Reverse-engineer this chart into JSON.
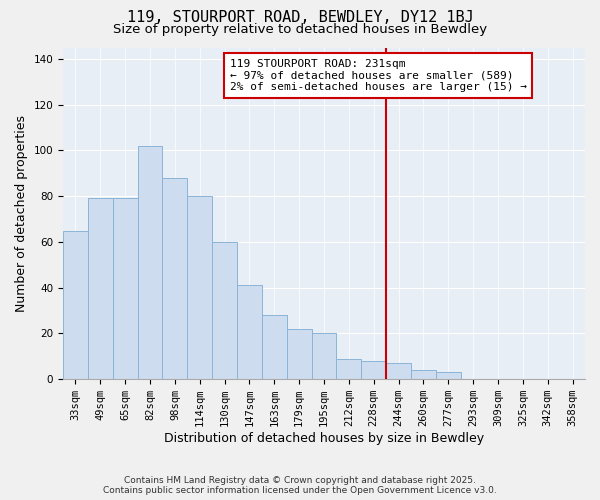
{
  "title": "119, STOURPORT ROAD, BEWDLEY, DY12 1BJ",
  "subtitle": "Size of property relative to detached houses in Bewdley",
  "xlabel": "Distribution of detached houses by size in Bewdley",
  "ylabel": "Number of detached properties",
  "bar_labels": [
    "33sqm",
    "49sqm",
    "65sqm",
    "82sqm",
    "98sqm",
    "114sqm",
    "130sqm",
    "147sqm",
    "163sqm",
    "179sqm",
    "195sqm",
    "212sqm",
    "228sqm",
    "244sqm",
    "260sqm",
    "277sqm",
    "293sqm",
    "309sqm",
    "325sqm",
    "342sqm",
    "358sqm"
  ],
  "bar_heights": [
    65,
    79,
    79,
    102,
    88,
    80,
    60,
    41,
    28,
    22,
    20,
    9,
    8,
    7,
    4,
    3,
    0,
    0,
    0,
    0,
    0
  ],
  "bar_color": "#cddcee",
  "bar_edge_color": "#8ab4d8",
  "vline_x_index": 12,
  "vline_color": "#cc0000",
  "annotation_title": "119 STOURPORT ROAD: 231sqm",
  "annotation_line1": "← 97% of detached houses are smaller (589)",
  "annotation_line2": "2% of semi-detached houses are larger (15) →",
  "annotation_box_color": "#ffffff",
  "annotation_box_edge_color": "#cc0000",
  "ylim": [
    0,
    145
  ],
  "background_color": "#f0f0f0",
  "plot_bg_color": "#e8eef5",
  "grid_color": "#ffffff",
  "footnote1": "Contains HM Land Registry data © Crown copyright and database right 2025.",
  "footnote2": "Contains public sector information licensed under the Open Government Licence v3.0.",
  "title_fontsize": 11,
  "subtitle_fontsize": 9.5,
  "axis_label_fontsize": 9,
  "tick_fontsize": 7.5,
  "annotation_fontsize": 8,
  "footnote_fontsize": 6.5
}
